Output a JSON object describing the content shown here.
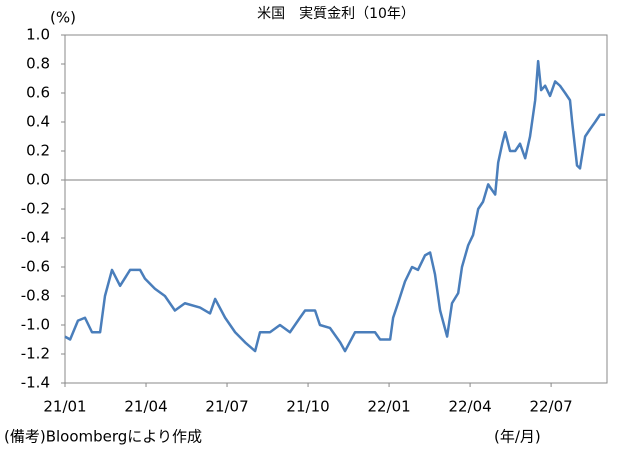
{
  "chart_data": {
    "type": "line",
    "title": "米国　実質金利（10年）",
    "y_unit": "(%)",
    "x_unit": "(年/月)",
    "note": "(備考)Bloombergにより作成",
    "x": [
      0,
      0.19,
      0.48,
      0.74,
      1.0,
      1.3,
      1.48,
      1.74,
      2.04,
      2.41,
      2.78,
      2.96,
      3.33,
      3.7,
      4.07,
      4.44,
      5.0,
      5.37,
      5.56,
      5.93,
      6.3,
      6.67,
      7.04,
      7.22,
      7.59,
      7.96,
      8.33,
      8.7,
      8.89,
      9.26,
      9.44,
      9.81,
      10.19,
      10.37,
      10.74,
      11.11,
      11.48,
      11.67,
      12.04,
      12.15,
      12.33,
      12.59,
      12.85,
      13.07,
      13.33,
      13.52,
      13.7,
      13.89,
      14.15,
      14.33,
      14.56,
      14.7,
      14.93,
      15.11,
      15.3,
      15.48,
      15.67,
      15.74,
      15.93,
      16.04,
      16.19,
      16.3,
      16.48,
      16.67,
      16.85,
      17.04,
      17.22,
      17.41,
      17.52,
      17.63,
      17.78,
      17.96,
      18.15,
      18.33,
      18.52,
      18.7,
      18.78,
      18.96,
      19.07,
      19.26,
      19.44,
      19.63,
      19.81,
      20.0
    ],
    "series": [
      {
        "name": "実質金利",
        "color": "#4a7ebb",
        "values": [
          -1.08,
          -1.1,
          -0.97,
          -0.95,
          -1.05,
          -1.05,
          -0.8,
          -0.62,
          -0.73,
          -0.62,
          -0.62,
          -0.68,
          -0.75,
          -0.8,
          -0.9,
          -0.85,
          -0.88,
          -0.92,
          -0.82,
          -0.95,
          -1.05,
          -1.12,
          -1.18,
          -1.05,
          -1.05,
          -1.0,
          -1.05,
          -0.95,
          -0.9,
          -0.9,
          -1.0,
          -1.02,
          -1.12,
          -1.18,
          -1.05,
          -1.05,
          -1.05,
          -1.1,
          -1.1,
          -0.95,
          -0.85,
          -0.7,
          -0.6,
          -0.62,
          -0.52,
          -0.5,
          -0.65,
          -0.9,
          -1.08,
          -0.85,
          -0.78,
          -0.6,
          -0.45,
          -0.38,
          -0.2,
          -0.15,
          -0.03,
          -0.05,
          -0.1,
          0.12,
          0.25,
          0.33,
          0.2,
          0.2,
          0.25,
          0.15,
          0.3,
          0.55,
          0.82,
          0.62,
          0.65,
          0.58,
          0.68,
          0.65,
          0.6,
          0.55,
          0.4,
          0.1,
          0.08,
          0.3,
          0.35,
          0.4,
          0.45,
          0.45
        ]
      }
    ],
    "xlim": [
      0,
      20.07
    ],
    "xticks": [
      {
        "value": 0,
        "label": "21/01"
      },
      {
        "value": 3,
        "label": "21/04"
      },
      {
        "value": 6,
        "label": "21/07"
      },
      {
        "value": 9,
        "label": "21/10"
      },
      {
        "value": 12,
        "label": "22/01"
      },
      {
        "value": 15,
        "label": "22/04"
      },
      {
        "value": 18,
        "label": "22/07"
      }
    ],
    "ylim": [
      -1.4,
      1.0
    ],
    "yticks": [
      {
        "value": 1.0,
        "label": "1.0"
      },
      0.8,
      0.6,
      0.4,
      0.2,
      {
        "value": 0,
        "label": "0.0"
      },
      -0.2,
      -0.4,
      -0.6,
      -0.8,
      {
        "value": -1.0,
        "label": "-1.0"
      },
      -1.2,
      -1.4
    ],
    "zero_line": true
  }
}
